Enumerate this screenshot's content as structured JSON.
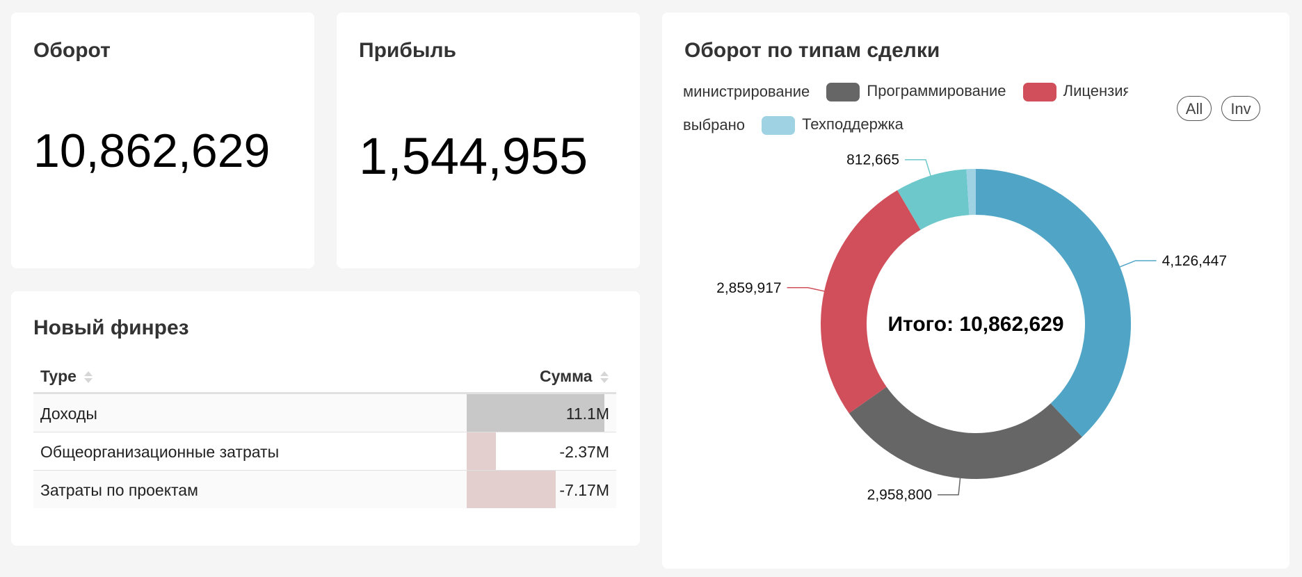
{
  "kpi_turnover": {
    "title": "Оборот",
    "value": "10,862,629"
  },
  "kpi_profit": {
    "title": "Прибыль",
    "value": "1,544,955"
  },
  "finrez": {
    "title": "Новый финрез",
    "columns": {
      "type": "Type",
      "sum": "Сумма"
    },
    "rows": [
      {
        "label": "Доходы",
        "value": "11.1M",
        "amount": 11.1
      },
      {
        "label": "Общеорганизационные затраты",
        "value": "-2.37M",
        "amount": -2.37
      },
      {
        "label": "Затраты по проектам",
        "value": "-7.17M",
        "amount": -7.17
      }
    ],
    "colors": {
      "positive": "#c8c8c8",
      "negative": "#e4cfcf"
    }
  },
  "donut_card": {
    "title": "Оборот по типам сделки",
    "legend": [
      {
        "label": "министрирование",
        "color": null
      },
      {
        "label": "Программирование",
        "color": "#666666"
      },
      {
        "label": "Лицензия",
        "color": "#d04f5a"
      },
      {
        "label": "выбрано",
        "color": null
      },
      {
        "label": "Техподдержка",
        "color": "#9fd3e3"
      }
    ],
    "buttons": {
      "all": "All",
      "inv": "Inv"
    },
    "center_label": "Итого: 10,862,629"
  },
  "chart_data": {
    "type": "pie",
    "title": "Оборот по типам сделки",
    "total_label": "Итого: 10,862,629",
    "slices": [
      {
        "value": 4126447,
        "label": "4,126,447",
        "color": "#50a5c7"
      },
      {
        "value": 2958800,
        "label": "2,958,800",
        "color": "#666666"
      },
      {
        "value": 2859917,
        "label": "2,859,917",
        "color": "#d04f5a"
      },
      {
        "value": 812665,
        "label": "812,665",
        "color": "#6cc8cb"
      },
      {
        "value": 104800,
        "label": "",
        "color": "#9fd3e3"
      }
    ]
  }
}
